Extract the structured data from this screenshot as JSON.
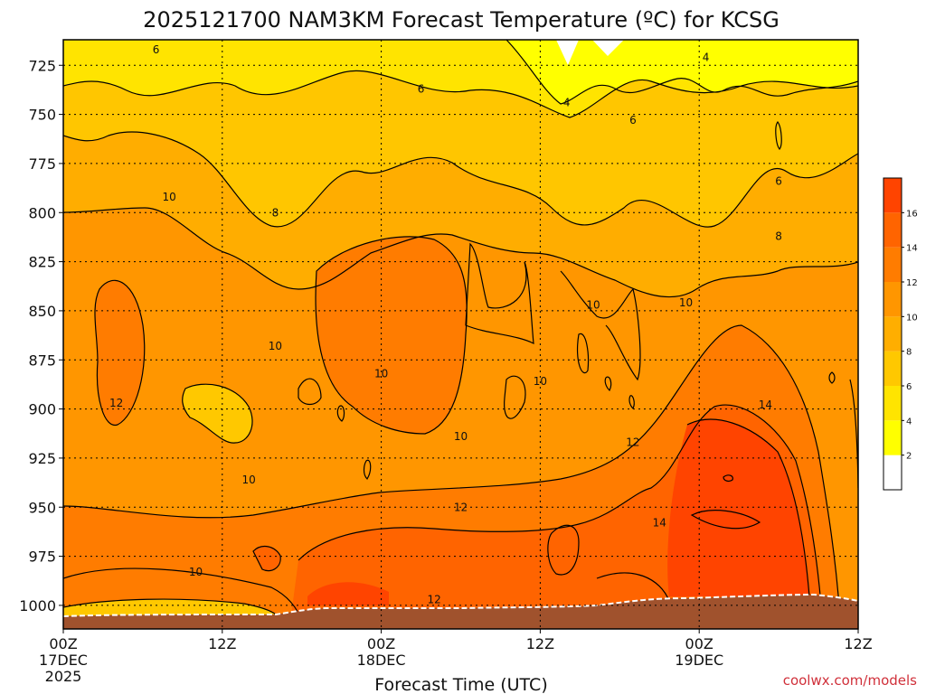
{
  "chart_data": {
    "type": "heatmap",
    "title": "2025121700 NAM3KM Forecast Temperature (ºC) for KCSG",
    "xlabel": "Forecast Time (UTC)",
    "ylabel": "",
    "y_ticks": [
      725,
      750,
      775,
      800,
      825,
      850,
      875,
      900,
      925,
      950,
      975,
      1000
    ],
    "y_range": [
      712,
      1012
    ],
    "x_range_hours": [
      0,
      60
    ],
    "x_ticks": [
      {
        "hour": 0,
        "label": "00Z",
        "date": "17DEC",
        "year": "2025"
      },
      {
        "hour": 12,
        "label": "12Z",
        "date": "",
        "year": ""
      },
      {
        "hour": 24,
        "label": "00Z",
        "date": "18DEC",
        "year": ""
      },
      {
        "hour": 36,
        "label": "12Z",
        "date": "",
        "year": ""
      },
      {
        "hour": 48,
        "label": "00Z",
        "date": "19DEC",
        "year": ""
      },
      {
        "hour": 60,
        "label": "12Z",
        "date": "",
        "year": ""
      }
    ],
    "grid": true,
    "colorbar": {
      "ticks": [
        2,
        4,
        6,
        8,
        10,
        12,
        14,
        16
      ],
      "range": [
        0,
        18
      ],
      "colors": [
        "#ffffff",
        "#ffff00",
        "#ffe400",
        "#ffc800",
        "#ffae00",
        "#ff9600",
        "#ff7c00",
        "#ff6400",
        "#ff4400"
      ]
    },
    "contour_levels_labeled": [
      {
        "hour": 7.0,
        "pressure": 717,
        "value": "6"
      },
      {
        "hour": 27.0,
        "pressure": 737,
        "value": "6"
      },
      {
        "hour": 38.0,
        "pressure": 744,
        "value": "4"
      },
      {
        "hour": 43.0,
        "pressure": 753,
        "value": "6"
      },
      {
        "hour": 48.5,
        "pressure": 721,
        "value": "4"
      },
      {
        "hour": 54.0,
        "pressure": 784,
        "value": "6"
      },
      {
        "hour": 8.0,
        "pressure": 792,
        "value": "10"
      },
      {
        "hour": 16.0,
        "pressure": 800,
        "value": "8"
      },
      {
        "hour": 54.0,
        "pressure": 812,
        "value": "8"
      },
      {
        "hour": 40.0,
        "pressure": 847,
        "value": "10"
      },
      {
        "hour": 47.0,
        "pressure": 846,
        "value": "10"
      },
      {
        "hour": 16.0,
        "pressure": 868,
        "value": "10"
      },
      {
        "hour": 24.0,
        "pressure": 882,
        "value": "10"
      },
      {
        "hour": 36.0,
        "pressure": 886,
        "value": "10"
      },
      {
        "hour": 30.0,
        "pressure": 914,
        "value": "10"
      },
      {
        "hour": 4.0,
        "pressure": 897,
        "value": "12"
      },
      {
        "hour": 43.0,
        "pressure": 917,
        "value": "12"
      },
      {
        "hour": 53.0,
        "pressure": 898,
        "value": "14"
      },
      {
        "hour": 14.0,
        "pressure": 936,
        "value": "10"
      },
      {
        "hour": 30.0,
        "pressure": 950,
        "value": "12"
      },
      {
        "hour": 45.0,
        "pressure": 958,
        "value": "14"
      },
      {
        "hour": 10.0,
        "pressure": 983,
        "value": "10"
      },
      {
        "hour": 28.0,
        "pressure": 997,
        "value": "12"
      }
    ],
    "units": "ºC"
  },
  "credit": "coolwx.com/models",
  "colors": {
    "terrain": "#a0522d",
    "grid": "#000000",
    "credit": "#d0303a"
  }
}
